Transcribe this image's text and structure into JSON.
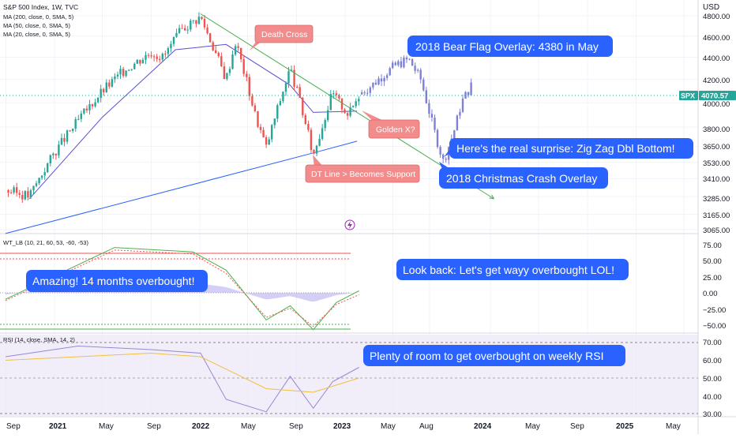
{
  "header": {
    "title": "S&P 500 Index, 1W, TVC",
    "indicators": [
      "MA (200, close, 0, SMA, 5)",
      "MA (50, close, 0, SMA, 5)",
      "MA (20, close, 0, SMA, 5)"
    ]
  },
  "price_axis": {
    "unit": "USD",
    "ticks": [
      "4800.00",
      "4600.00",
      "4400.00",
      "4200.00",
      "4000.00",
      "3800.00",
      "3650.00",
      "3530.00",
      "3410.00",
      "3285.00",
      "3165.00",
      "3065.00"
    ],
    "last_badge": {
      "symbol": "SPX",
      "value": "4070.57"
    }
  },
  "wt_axis": {
    "ticks": [
      "75.00",
      "50.00",
      "25.00",
      "0.00",
      "−25.00",
      "−50.00"
    ]
  },
  "rsi_axis": {
    "ticks": [
      "70.00",
      "60.00",
      "50.00",
      "40.00",
      "30.00"
    ]
  },
  "time_axis": {
    "labels": [
      "Sep",
      "2021",
      "May",
      "Sep",
      "2022",
      "May",
      "Sep",
      "2023",
      "May",
      "Aug",
      "2024",
      "May",
      "Sep",
      "2025",
      "May"
    ]
  },
  "panes": {
    "wt_label": "WT_LB (10, 21, 60, 53, -60, -53)",
    "rsi_label": "RSI (14, close, SMA, 14, 2)"
  },
  "annotations": {
    "bear_flag": "2018 Bear Flag Overlay:  4380 in May",
    "death_cross": "Death Cross",
    "golden_x": "Golden X?",
    "dt_line": "DT Line > Becomes Support",
    "zig_zag": "Here's the real surprise: Zig Zag Dbl Bottom!",
    "christmas": "2018 Christmas Crash Overlay",
    "overbought_14": "Amazing! 14 months overbought!",
    "look_back": "Look back: Let's get wayy overbought LOL!",
    "rsi_room": "Plenty of room to get overbought on weekly RSI"
  },
  "colors": {
    "up": "#26a69a",
    "down": "#ef5350",
    "overlay": "#7e80d6",
    "ma_blue": "#2962ff",
    "ma_purple": "#5b4fcf",
    "trend": "#4caf50",
    "blue_callout": "#2962ff",
    "red_callout": "#f28c8c",
    "rsi_bg": "#ede7f6",
    "rsi_line": "#9a86d3",
    "rsi_ma": "#f0c040"
  },
  "chart_data": [
    {
      "type": "candlestick",
      "title": "S&P 500 Index, 1W, TVC",
      "ylabel": "USD",
      "ylim": [
        3020,
        4860
      ],
      "scale": "log",
      "x_labels": [
        "Sep",
        "2021",
        "May",
        "Sep",
        "2022",
        "May",
        "Sep",
        "2023",
        "May",
        "Aug",
        "2024",
        "May",
        "Sep",
        "2025",
        "May"
      ],
      "series": [
        {
          "name": "SPX weekly close",
          "x": [
            "2020-08-31",
            "2020-10-30",
            "2020-12-31",
            "2021-03-01",
            "2021-05-01",
            "2021-07-01",
            "2021-09-01",
            "2021-10-01",
            "2021-11-20",
            "2022-01-03",
            "2022-03-08",
            "2022-04-01",
            "2022-05-20",
            "2022-06-17",
            "2022-08-16",
            "2022-09-10",
            "2022-10-13",
            "2022-11-30",
            "2023-01-10",
            "2023-02-05"
          ],
          "y": [
            3330,
            3290,
            3600,
            3850,
            4100,
            4300,
            4450,
            4400,
            4680,
            4790,
            4200,
            4550,
            3900,
            3640,
            4300,
            4000,
            3580,
            4080,
            3900,
            4071
          ]
        },
        {
          "name": "2018 Bear Flag / Christmas Crash overlay",
          "x": [
            "2023-02-05",
            "2023-03-10",
            "2023-04-10",
            "2023-05-10",
            "2023-06-10",
            "2023-07-10",
            "2023-08-10",
            "2023-09-05",
            "2023-10-05",
            "2023-10-20",
            "2023-11-20"
          ],
          "y": [
            4071,
            4150,
            4250,
            4330,
            4380,
            4200,
            3800,
            3530,
            3800,
            4000,
            4180
          ]
        },
        {
          "name": "MA (200)",
          "x": [
            "2020-08-31",
            "2022-10-13",
            "2023-01-31"
          ],
          "y": [
            3040,
            3600,
            3690
          ]
        },
        {
          "name": "MA (50)",
          "x": [
            "2020-10-30",
            "2021-05-01",
            "2021-11-01",
            "2022-03-08",
            "2022-08-16",
            "2022-10-13",
            "2023-01-31"
          ],
          "y": [
            3270,
            3880,
            4470,
            4520,
            4150,
            3920,
            3930
          ]
        },
        {
          "name": "Downtrend line",
          "x": [
            "2022-01-03",
            "2024-01-10"
          ],
          "y": [
            4820,
            3270
          ]
        }
      ]
    },
    {
      "type": "line",
      "title": "WT_LB (10, 21, 60, 53, -60, -53)",
      "ylim": [
        -65,
        90
      ],
      "levels": [
        60,
        53,
        -53,
        -60
      ],
      "series": [
        {
          "name": "WT1",
          "x": [
            "2020-08-31",
            "2021-06-01",
            "2021-12-15",
            "2022-03-08",
            "2022-06-17",
            "2022-08-16",
            "2022-10-13",
            "2022-12-10",
            "2023-02-05"
          ],
          "y": [
            -10,
            70,
            63,
            35,
            -42,
            -20,
            -57,
            -15,
            3
          ]
        },
        {
          "name": "WT2",
          "x": [
            "2020-08-31",
            "2021-06-01",
            "2021-12-15",
            "2022-03-08",
            "2022-06-17",
            "2022-08-16",
            "2022-10-13",
            "2022-12-10",
            "2023-02-05"
          ],
          "y": [
            -12,
            66,
            60,
            30,
            -38,
            -24,
            -52,
            -18,
            -3
          ]
        }
      ]
    },
    {
      "type": "line",
      "title": "RSI (14, close, SMA, 14, 2)",
      "ylim": [
        29,
        72
      ],
      "levels": [
        70,
        50,
        30
      ],
      "series": [
        {
          "name": "RSI",
          "x": [
            "2020-08-31",
            "2021-03-01",
            "2021-09-01",
            "2022-01-03",
            "2022-03-08",
            "2022-06-17",
            "2022-08-16",
            "2022-10-13",
            "2022-12-01",
            "2023-02-05"
          ],
          "y": [
            62,
            68,
            66,
            64,
            38,
            31,
            51,
            33,
            48,
            56
          ]
        },
        {
          "name": "RSI MA",
          "x": [
            "2020-08-31",
            "2021-09-01",
            "2022-01-03",
            "2022-06-17",
            "2022-10-13",
            "2023-02-05"
          ],
          "y": [
            60,
            64,
            62,
            44,
            42,
            50
          ]
        }
      ]
    }
  ]
}
